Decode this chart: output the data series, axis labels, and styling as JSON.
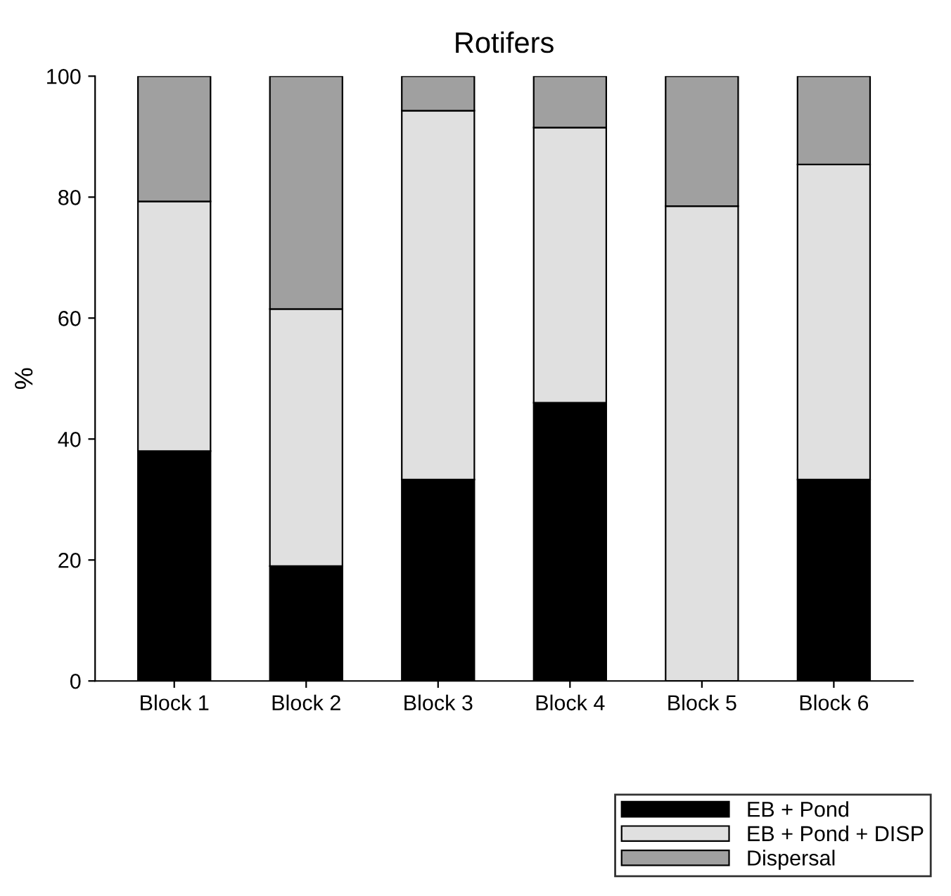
{
  "chart_data": {
    "type": "bar",
    "title": "Rotifers",
    "ylabel": "%",
    "categories": [
      "Block 1",
      "Block 2",
      "Block 3",
      "Block 4",
      "Block 5",
      "Block 6"
    ],
    "stacked": true,
    "series": [
      {
        "name": "EB + Pond",
        "color": "#000000",
        "values": [
          38,
          19,
          33.3,
          46,
          0,
          33.3
        ]
      },
      {
        "name": "EB + Pond + DISP",
        "color": "#e0e0e0",
        "values": [
          41.3,
          42.5,
          61,
          45.5,
          78.5,
          52.1
        ]
      },
      {
        "name": "Dispersal",
        "color": "#a0a0a0",
        "values": [
          20.7,
          38.5,
          5.7,
          8.5,
          21.5,
          14.6
        ]
      }
    ],
    "ylim": [
      0,
      100
    ],
    "yticks": [
      0,
      20,
      40,
      60,
      80,
      100
    ],
    "grid": false,
    "legend": "bottom right"
  }
}
